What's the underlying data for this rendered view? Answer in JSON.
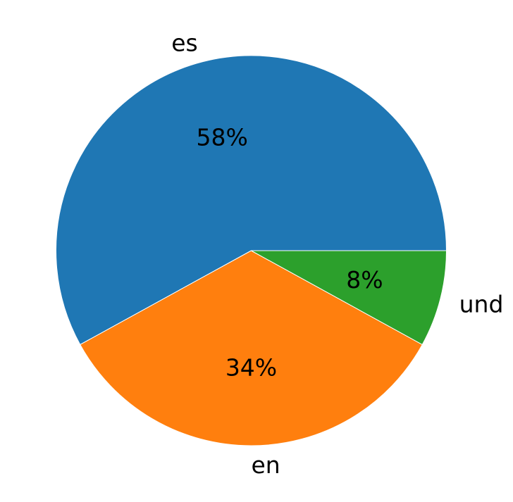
{
  "chart_data": {
    "type": "pie",
    "title": "",
    "slices": [
      {
        "label": "es",
        "value": 58,
        "pct_label": "58%",
        "color": "#1f77b4"
      },
      {
        "label": "en",
        "value": 34,
        "pct_label": "34%",
        "color": "#ff7f0e"
      },
      {
        "label": "und",
        "value": 8,
        "pct_label": "8%",
        "color": "#2ca02c"
      }
    ],
    "start_angle_deg": 0,
    "direction": "counterclockwise",
    "legend": "none"
  }
}
